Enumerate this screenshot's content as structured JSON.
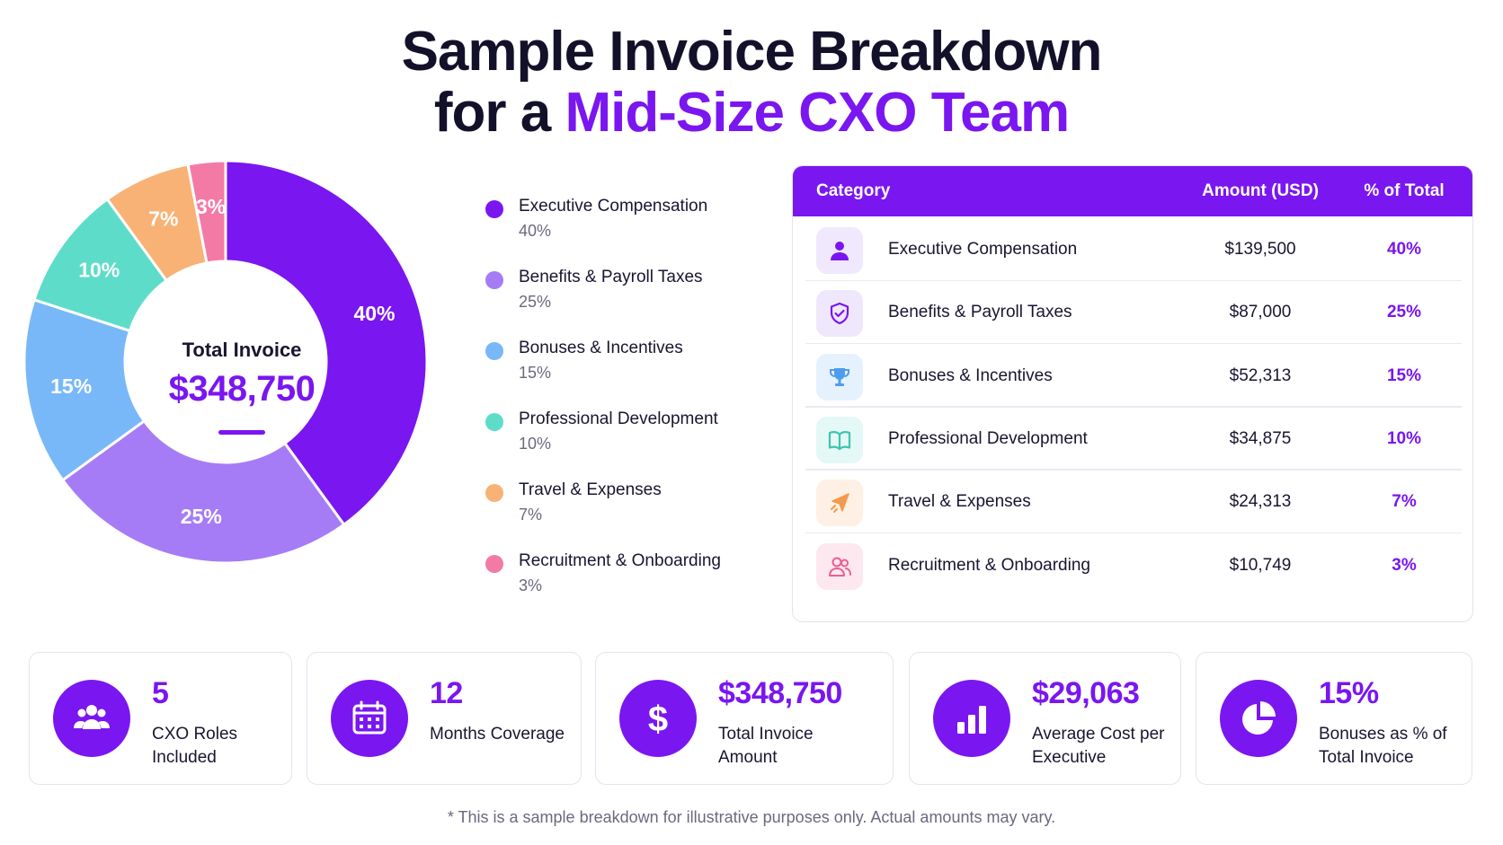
{
  "title": {
    "line1": "Sample Invoice Breakdown",
    "line2_prefix": "for a ",
    "line2_accent": "Mid-Size CXO Team"
  },
  "chart_data": {
    "type": "pie",
    "title": "Sample Invoice Breakdown for a Mid-Size CXO Team",
    "center_label": "Total Invoice",
    "center_value": "$348,750",
    "categories": [
      "Executive Compensation",
      "Benefits & Payroll Taxes",
      "Bonuses & Incentives",
      "Professional Development",
      "Travel & Expenses",
      "Recruitment & Onboarding"
    ],
    "values": [
      40,
      25,
      15,
      10,
      7,
      3
    ],
    "labels": [
      "40%",
      "25%",
      "15%",
      "10%",
      "7%",
      "3%"
    ],
    "colors": [
      "#7a16f0",
      "#a57cf5",
      "#78b8f8",
      "#5edcca",
      "#f8b275",
      "#f47aa6"
    ],
    "legend_placement": "right"
  },
  "table": {
    "headers": {
      "category": "Category",
      "amount": "Amount (USD)",
      "pct": "% of Total"
    },
    "rows": [
      {
        "icon": "user-icon",
        "name": "Executive Compensation",
        "amount": "$139,500",
        "pct": "40%",
        "icon_bg": "#f0e8fd",
        "icon_color": "#7a16f0"
      },
      {
        "icon": "shield-check-icon",
        "name": "Benefits & Payroll Taxes",
        "amount": "$87,000",
        "pct": "25%",
        "icon_bg": "#efe8fd",
        "icon_color": "#7a16f0"
      },
      {
        "icon": "trophy-icon",
        "name": "Bonuses & Incentives",
        "amount": "$52,313",
        "pct": "15%",
        "icon_bg": "#e6f1fe",
        "icon_color": "#4e9cf0"
      },
      {
        "icon": "book-icon",
        "name": "Professional Development",
        "amount": "$34,875",
        "pct": "10%",
        "icon_bg": "#e4f8f5",
        "icon_color": "#3fc4b1"
      },
      {
        "icon": "plane-icon",
        "name": "Travel & Expenses",
        "amount": "$24,313",
        "pct": "7%",
        "icon_bg": "#fef0e4",
        "icon_color": "#f49a4c"
      },
      {
        "icon": "users-icon",
        "name": "Recruitment & Onboarding",
        "amount": "$10,749",
        "pct": "3%",
        "icon_bg": "#fde8f0",
        "icon_color": "#ec5d92"
      }
    ]
  },
  "stats": [
    {
      "icon": "group-icon",
      "value": "5",
      "label": "CXO Roles Included"
    },
    {
      "icon": "calendar-icon",
      "value": "12",
      "label": "Months Coverage"
    },
    {
      "icon": "dollar-icon",
      "value": "$348,750",
      "label": "Total Invoice Amount"
    },
    {
      "icon": "bar-chart-icon",
      "value": "$29,063",
      "label": "Average Cost per Executive"
    },
    {
      "icon": "pie-chart-icon",
      "value": "15%",
      "label": "Bonuses as % of Total Invoice"
    }
  ],
  "footnote": "* This is a sample breakdown for illustrative purposes only. Actual amounts may vary."
}
